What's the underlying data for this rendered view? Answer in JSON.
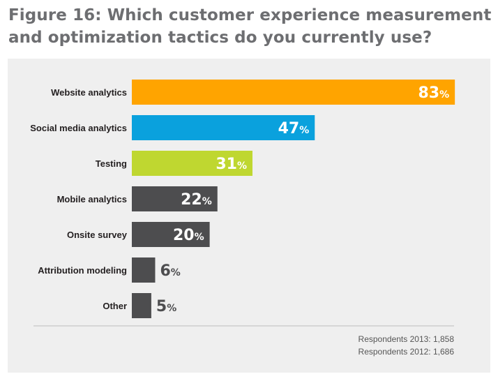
{
  "title": "Figure 16: Which customer experience measurement and optimization tactics do you currently use?",
  "colors": {
    "orange": "#ffa400",
    "blue": "#0aa1dd",
    "green": "#bfd730",
    "gray": "#4d4d4f",
    "panel": "#efefef"
  },
  "chart_data": {
    "type": "bar",
    "orientation": "horizontal",
    "categories": [
      "Website analytics",
      "Social media analytics",
      "Testing",
      "Mobile analytics",
      "Onsite survey",
      "Attribution modeling",
      "Other"
    ],
    "values": [
      83,
      47,
      31,
      22,
      20,
      6,
      5
    ],
    "value_suffix": "%",
    "bar_colors": [
      "#ffa400",
      "#0aa1dd",
      "#bfd730",
      "#4d4d4f",
      "#4d4d4f",
      "#4d4d4f",
      "#4d4d4f"
    ],
    "xlim": [
      0,
      100
    ],
    "grid": false
  },
  "footnotes": [
    "Respondents 2013: 1,858",
    "Respondents 2012: 1,686"
  ]
}
